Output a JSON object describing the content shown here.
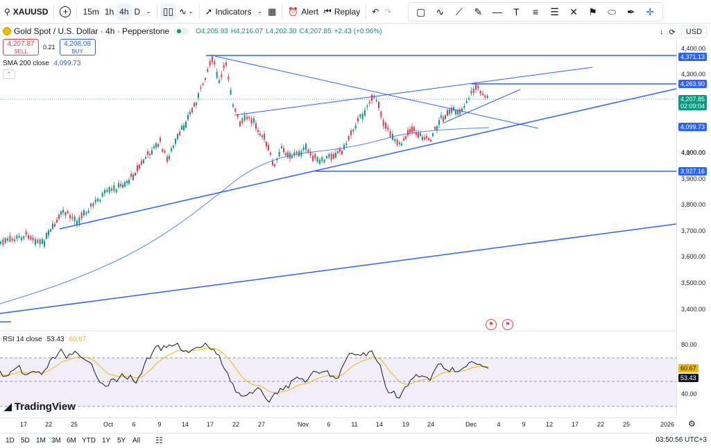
{
  "toolbar": {
    "symbol": "XAUUSD",
    "intervals": [
      "15m",
      "1h",
      "4h",
      "D"
    ],
    "active_interval": "4h",
    "indicators_label": "Indicators",
    "alert_label": "Alert",
    "replay_label": "Replay"
  },
  "legend": {
    "title": "Gold Spot / U.S. Dollar · 4h · Pepperstone",
    "open": "O4,205.93",
    "high": "H4,216.07",
    "low": "L4,202.30",
    "close": "C4,207.85",
    "change": "+2.43 (+0.06%)",
    "sell_price": "4,207.87",
    "sell_label": "SELL",
    "spread": "0.21",
    "buy_price": "4,208.08",
    "buy_label": "BUY",
    "sma_name": "SMA 200 close",
    "sma_value": "4,099.73"
  },
  "right_controls": {
    "currency": "USD"
  },
  "price_axis": {
    "labels": [
      "4,400.00",
      "4,300.00",
      "4,200.00",
      "4,100.00",
      "4,000.00",
      "3,900.00",
      "3,800.00",
      "3,700.00",
      "3,600.00",
      "3,500.00",
      "3,400.00"
    ],
    "tags": [
      "4,371.13",
      "4,263.90",
      "4,099.73",
      "3,927.16"
    ],
    "last_price": "4,207.85",
    "countdown": "02:09:04"
  },
  "rsi": {
    "name": "RSI 14 close",
    "value": "53.43",
    "ma_value": "60.67",
    "labels": [
      "80.00",
      "40.00"
    ]
  },
  "time_axis": {
    "labels": [
      "17",
      "22",
      "25",
      "Oct",
      "6",
      "9",
      "14",
      "17",
      "22",
      "27",
      "Nov",
      "6",
      "11",
      "14",
      "19",
      "24",
      "Dec",
      "4",
      "9",
      "12",
      "17",
      "22",
      "25",
      "2026"
    ]
  },
  "bottom_bar": {
    "ranges": [
      "1D",
      "5D",
      "1M",
      "3M",
      "6M",
      "YTD",
      "1Y",
      "5Y",
      "All"
    ],
    "clock": "03:50:56 UTC+3"
  },
  "branding": {
    "logo_text": "TradingView"
  },
  "colors": {
    "up": "#089981",
    "down": "#f23645",
    "accent": "#2962ff",
    "rsi_line": "#7e57c2",
    "rsi_ma": "#f0b90b"
  }
}
